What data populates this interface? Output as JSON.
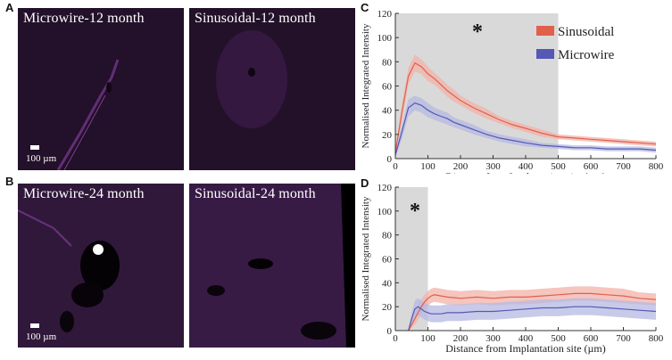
{
  "panels": {
    "A": "A",
    "B": "B",
    "C": "C",
    "D": "D"
  },
  "micrographs": {
    "a_left_label": "Microwire-12 month",
    "a_right_label": "Sinusoidal-12 month",
    "b_left_label": "Microwire-24 month",
    "b_right_label": "Sinusoidal-24 month",
    "scale_label": "100  µm"
  },
  "colors": {
    "sinusoidal": "#e0604c",
    "sinusoidal_band": "#f2b1a8",
    "microwire": "#5558b4",
    "microwire_band": "#b6b8e2",
    "shade": "#d9d9d9",
    "tissue": "#160b1b",
    "stain": "#a24cc0"
  },
  "chart_data": [
    {
      "panel": "C",
      "type": "line",
      "xlabel": "Distance from Implantation site (µm)",
      "ylabel": "Normalised Integrated Intensity",
      "xlim": [
        0,
        800
      ],
      "ylim": [
        0,
        120
      ],
      "xticks": [
        0,
        100,
        200,
        300,
        400,
        500,
        600,
        700,
        800
      ],
      "yticks": [
        0,
        20,
        40,
        60,
        80,
        100,
        120
      ],
      "shaded_region": [
        0,
        500
      ],
      "significance_marker": "*",
      "legend": {
        "position": "top-right",
        "entries": [
          "Sinusoidal",
          "Microwire"
        ]
      },
      "x": [
        0,
        20,
        40,
        60,
        80,
        100,
        120,
        140,
        160,
        180,
        200,
        240,
        280,
        320,
        360,
        400,
        450,
        500,
        550,
        600,
        650,
        700,
        750,
        800
      ],
      "series": [
        {
          "name": "Sinusoidal",
          "values": [
            5,
            38,
            68,
            79,
            76,
            70,
            66,
            61,
            56,
            52,
            48,
            42,
            37,
            32,
            28,
            25,
            21,
            18,
            17,
            16,
            15,
            14,
            13,
            12
          ],
          "err": [
            3,
            7,
            7,
            7,
            6,
            6,
            5,
            5,
            5,
            5,
            4,
            4,
            4,
            3,
            3,
            3,
            3,
            2,
            2,
            2,
            2,
            2,
            2,
            2
          ]
        },
        {
          "name": "Microwire",
          "values": [
            3,
            22,
            42,
            46,
            44,
            40,
            37,
            35,
            33,
            30,
            28,
            24,
            20,
            17,
            15,
            13,
            11,
            10,
            9,
            9,
            8,
            8,
            8,
            7
          ],
          "err": [
            2,
            6,
            7,
            6,
            6,
            6,
            5,
            5,
            5,
            4,
            4,
            4,
            3,
            3,
            3,
            3,
            2,
            2,
            2,
            2,
            2,
            2,
            2,
            2
          ]
        }
      ]
    },
    {
      "panel": "D",
      "type": "line",
      "xlabel": "Distance from Implantation site (µm)",
      "ylabel": "Normalised Integrated Intensity",
      "xlim": [
        0,
        800
      ],
      "ylim": [
        0,
        120
      ],
      "xticks": [
        0,
        100,
        200,
        300,
        400,
        500,
        600,
        700,
        800
      ],
      "yticks": [
        0,
        20,
        40,
        60,
        80,
        100,
        120
      ],
      "shaded_region": [
        0,
        100
      ],
      "significance_marker": "*",
      "x": [
        40,
        50,
        60,
        70,
        80,
        90,
        100,
        110,
        120,
        140,
        160,
        200,
        250,
        300,
        350,
        400,
        450,
        500,
        550,
        600,
        650,
        700,
        750,
        800
      ],
      "series": [
        {
          "name": "Sinusoidal",
          "values": [
            0,
            5,
            10,
            15,
            20,
            24,
            27,
            29,
            30,
            29,
            28,
            27,
            28,
            27,
            28,
            28,
            29,
            30,
            31,
            31,
            30,
            29,
            27,
            26
          ],
          "err": [
            1,
            3,
            5,
            6,
            6,
            6,
            6,
            6,
            6,
            6,
            6,
            6,
            6,
            6,
            6,
            6,
            6,
            6,
            6,
            6,
            6,
            6,
            5,
            5
          ]
        },
        {
          "name": "Microwire",
          "values": [
            0,
            10,
            18,
            20,
            18,
            16,
            15,
            14,
            14,
            14,
            15,
            15,
            16,
            16,
            17,
            18,
            19,
            19,
            20,
            20,
            19,
            18,
            17,
            16
          ],
          "err": [
            1,
            5,
            7,
            7,
            7,
            7,
            7,
            7,
            7,
            7,
            7,
            7,
            7,
            7,
            7,
            7,
            7,
            7,
            7,
            7,
            7,
            7,
            7,
            7
          ]
        }
      ]
    }
  ]
}
